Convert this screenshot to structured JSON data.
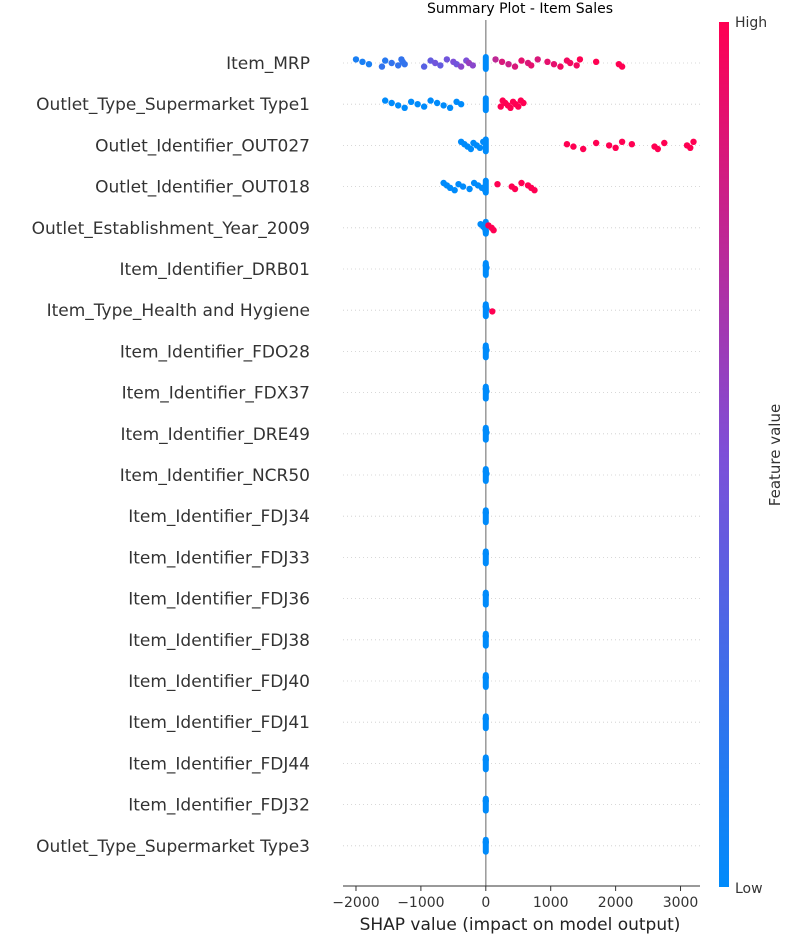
{
  "chart_data": {
    "type": "scatter",
    "title": "Summary Plot - Item Sales",
    "xlabel": "SHAP value (impact on model output)",
    "ylabel": "",
    "xlim": [
      -2200,
      3300
    ],
    "xticks": [
      -2000,
      -1000,
      0,
      1000,
      2000,
      3000
    ],
    "xtick_labels": [
      "−2000",
      "−1000",
      "0",
      "1000",
      "2000",
      "3000"
    ],
    "grid": false,
    "colorbar": {
      "label": "Feature value",
      "high_label": "High",
      "low_label": "Low",
      "low_color": "#008bfb",
      "mid_color": "#7d4fd8",
      "high_color": "#ff0052"
    },
    "features": [
      {
        "name": "Item_MRP",
        "points": [
          [
            -2000,
            0.1
          ],
          [
            -1900,
            0.1
          ],
          [
            -1800,
            0.1
          ],
          [
            -1600,
            0.2
          ],
          [
            -1550,
            0.15
          ],
          [
            -1450,
            0.2
          ],
          [
            -1350,
            0.2
          ],
          [
            -1300,
            0.2
          ],
          [
            -1280,
            0.2
          ],
          [
            -1250,
            0.2
          ],
          [
            -950,
            0.35
          ],
          [
            -850,
            0.4
          ],
          [
            -780,
            0.45
          ],
          [
            -700,
            0.4
          ],
          [
            -600,
            0.45
          ],
          [
            -500,
            0.5
          ],
          [
            -450,
            0.45
          ],
          [
            -380,
            0.55
          ],
          [
            -300,
            0.5
          ],
          [
            -260,
            0.6
          ],
          [
            -200,
            0.55
          ],
          [
            150,
            0.75
          ],
          [
            250,
            0.85
          ],
          [
            350,
            0.8
          ],
          [
            450,
            0.85
          ],
          [
            550,
            0.9
          ],
          [
            650,
            0.85
          ],
          [
            700,
            0.9
          ],
          [
            800,
            0.85
          ],
          [
            950,
            0.9
          ],
          [
            1050,
            0.9
          ],
          [
            1150,
            0.95
          ],
          [
            1250,
            0.95
          ],
          [
            1300,
            0.95
          ],
          [
            1400,
            0.95
          ],
          [
            1450,
            1.0
          ],
          [
            1700,
            1.0
          ],
          [
            2050,
            1.0
          ],
          [
            2100,
            1.0
          ]
        ]
      },
      {
        "name": "Outlet_Type_Supermarket Type1",
        "points": [
          [
            -1550,
            0
          ],
          [
            -1450,
            0
          ],
          [
            -1350,
            0
          ],
          [
            -1250,
            0
          ],
          [
            -1150,
            0
          ],
          [
            -1050,
            0
          ],
          [
            -950,
            0
          ],
          [
            -850,
            0
          ],
          [
            -750,
            0
          ],
          [
            -650,
            0
          ],
          [
            -550,
            0
          ],
          [
            -450,
            0
          ],
          [
            -380,
            0
          ],
          [
            230,
            1
          ],
          [
            260,
            1
          ],
          [
            300,
            1
          ],
          [
            340,
            1
          ],
          [
            380,
            1
          ],
          [
            420,
            1
          ],
          [
            460,
            1
          ],
          [
            500,
            1
          ],
          [
            540,
            1
          ],
          [
            580,
            1
          ]
        ]
      },
      {
        "name": "Outlet_Identifier_OUT027",
        "points": [
          [
            -380,
            0
          ],
          [
            -330,
            0
          ],
          [
            -280,
            0
          ],
          [
            -230,
            0
          ],
          [
            -190,
            0
          ],
          [
            -140,
            0
          ],
          [
            -90,
            0
          ],
          [
            -40,
            0
          ],
          [
            1250,
            1
          ],
          [
            1350,
            1
          ],
          [
            1500,
            1
          ],
          [
            1700,
            1
          ],
          [
            1900,
            1
          ],
          [
            2000,
            1
          ],
          [
            2100,
            1
          ],
          [
            2250,
            1
          ],
          [
            2600,
            1
          ],
          [
            2650,
            1
          ],
          [
            2750,
            1
          ],
          [
            3100,
            1
          ],
          [
            3150,
            1
          ],
          [
            3200,
            1
          ]
        ]
      },
      {
        "name": "Outlet_Identifier_OUT018",
        "points": [
          [
            -650,
            0
          ],
          [
            -600,
            0
          ],
          [
            -550,
            0
          ],
          [
            -480,
            0
          ],
          [
            -420,
            0
          ],
          [
            -350,
            0
          ],
          [
            -250,
            0
          ],
          [
            -180,
            0
          ],
          [
            -120,
            0
          ],
          [
            -60,
            0
          ],
          [
            -10,
            0
          ],
          [
            180,
            1
          ],
          [
            400,
            1
          ],
          [
            450,
            1
          ],
          [
            550,
            1
          ],
          [
            650,
            1
          ],
          [
            700,
            1
          ],
          [
            750,
            1
          ]
        ]
      },
      {
        "name": "Outlet_Establishment_Year_2009",
        "points": [
          [
            -80,
            0
          ],
          [
            -40,
            0
          ],
          [
            -10,
            0
          ],
          [
            0,
            0
          ],
          [
            40,
            1
          ],
          [
            90,
            1
          ],
          [
            120,
            1
          ]
        ]
      },
      {
        "name": "Item_Identifier_DRB01",
        "points": [
          [
            0,
            0
          ],
          [
            10,
            0
          ]
        ]
      },
      {
        "name": "Item_Type_Health and Hygiene",
        "points": [
          [
            0,
            0
          ],
          [
            10,
            0
          ],
          [
            100,
            1
          ]
        ]
      },
      {
        "name": "Item_Identifier_FDO28",
        "points": [
          [
            0,
            0
          ],
          [
            10,
            0
          ]
        ]
      },
      {
        "name": "Item_Identifier_FDX37",
        "points": [
          [
            0,
            0
          ],
          [
            10,
            0
          ]
        ]
      },
      {
        "name": "Item_Identifier_DRE49",
        "points": [
          [
            0,
            0
          ],
          [
            10,
            0
          ]
        ]
      },
      {
        "name": "Item_Identifier_NCR50",
        "points": [
          [
            0,
            0
          ],
          [
            10,
            0
          ]
        ]
      },
      {
        "name": "Item_Identifier_FDJ34",
        "points": [
          [
            0,
            0
          ]
        ]
      },
      {
        "name": "Item_Identifier_FDJ33",
        "points": [
          [
            0,
            0
          ]
        ]
      },
      {
        "name": "Item_Identifier_FDJ36",
        "points": [
          [
            0,
            0
          ]
        ]
      },
      {
        "name": "Item_Identifier_FDJ38",
        "points": [
          [
            0,
            0
          ]
        ]
      },
      {
        "name": "Item_Identifier_FDJ40",
        "points": [
          [
            0,
            0
          ]
        ]
      },
      {
        "name": "Item_Identifier_FDJ41",
        "points": [
          [
            0,
            0
          ]
        ]
      },
      {
        "name": "Item_Identifier_FDJ44",
        "points": [
          [
            0,
            0
          ]
        ]
      },
      {
        "name": "Item_Identifier_FDJ32",
        "points": [
          [
            0,
            0
          ]
        ]
      },
      {
        "name": "Outlet_Type_Supermarket Type3",
        "points": [
          [
            0,
            0
          ]
        ]
      }
    ]
  }
}
